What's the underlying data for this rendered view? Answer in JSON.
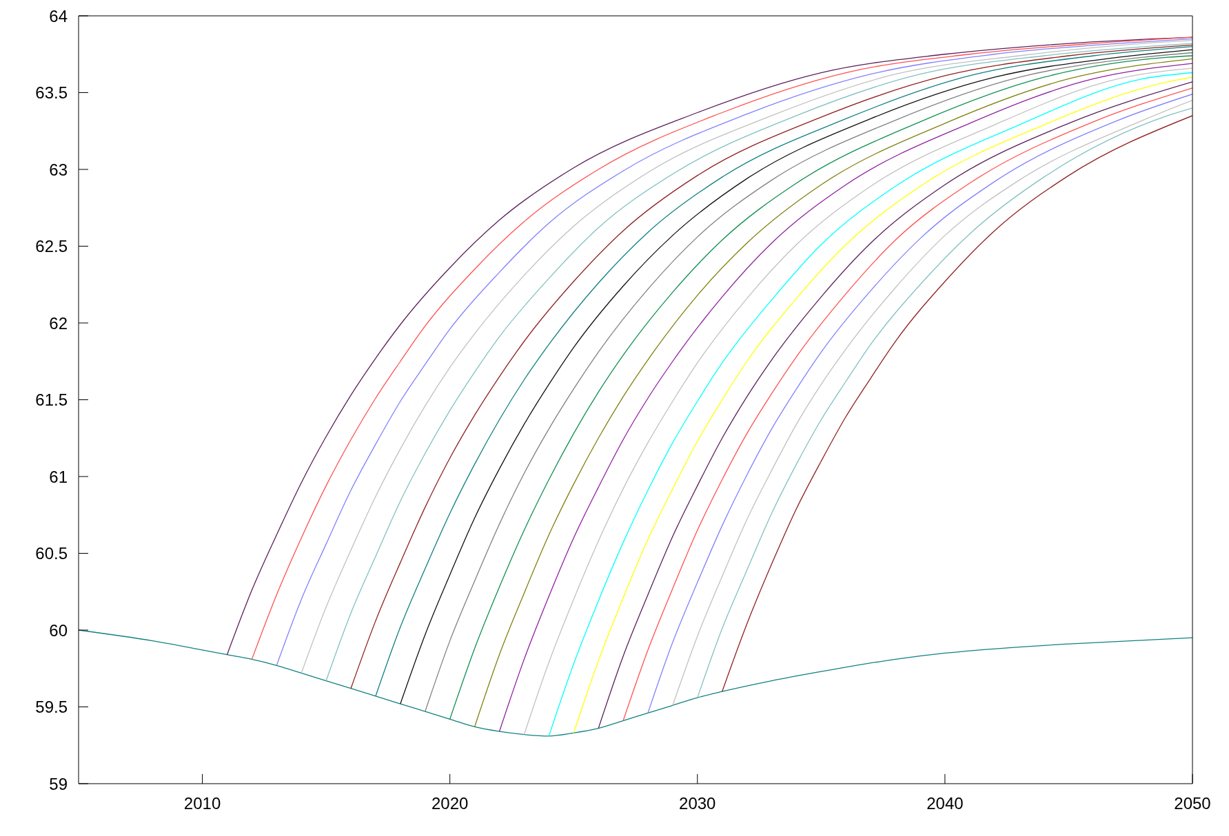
{
  "chart_data": {
    "type": "line",
    "xlim": [
      2005,
      2050
    ],
    "ylim": [
      59,
      64
    ],
    "xticks": [
      2010,
      2020,
      2030,
      2040,
      2050
    ],
    "yticks": [
      59,
      59.5,
      60,
      60.5,
      61,
      61.5,
      62,
      62.5,
      63,
      63.5,
      64
    ],
    "marker": "none",
    "line_style": "solid",
    "series": [
      {
        "color": "#108080",
        "x": [
          2005,
          2008,
          2011,
          2012,
          2013,
          2014,
          2015,
          2016,
          2017,
          2018,
          2019,
          2020,
          2021,
          2022,
          2023,
          2024,
          2025,
          2026,
          2027,
          2028,
          2029,
          2030,
          2031,
          2033,
          2035,
          2038,
          2040,
          2043,
          2045,
          2050
        ],
        "values": [
          60.0,
          59.93,
          59.84,
          59.81,
          59.77,
          59.72,
          59.67,
          59.62,
          59.57,
          59.52,
          59.47,
          59.42,
          59.37,
          59.34,
          59.32,
          59.31,
          59.33,
          59.36,
          59.41,
          59.46,
          59.51,
          59.56,
          59.6,
          59.67,
          59.73,
          59.81,
          59.85,
          59.89,
          59.91,
          59.95
        ]
      },
      {
        "color": "#5a1f5a",
        "x": [
          2011,
          2012,
          2013,
          2014,
          2015,
          2016,
          2017,
          2018,
          2020,
          2022,
          2025,
          2030,
          2035,
          2040,
          2045,
          2050
        ],
        "values": [
          59.84,
          60.26,
          60.62,
          60.96,
          61.26,
          61.53,
          61.77,
          61.99,
          62.36,
          62.67,
          63.01,
          63.37,
          63.63,
          63.75,
          63.82,
          63.86
        ]
      },
      {
        "color": "#ff5050",
        "x": [
          2012,
          2013,
          2014,
          2015,
          2016,
          2017,
          2018,
          2019,
          2021,
          2023,
          2026,
          2031,
          2036,
          2041,
          2046,
          2050
        ],
        "values": [
          59.81,
          60.23,
          60.6,
          60.94,
          61.24,
          61.51,
          61.75,
          61.98,
          62.35,
          62.66,
          63.0,
          63.37,
          63.63,
          63.75,
          63.82,
          63.86
        ]
      },
      {
        "color": "#8080ff",
        "x": [
          2013,
          2014,
          2015,
          2016,
          2017,
          2018,
          2019,
          2020,
          2022,
          2024,
          2027,
          2032,
          2037,
          2042,
          2047,
          2050
        ],
        "values": [
          59.77,
          60.2,
          60.56,
          60.91,
          61.21,
          61.49,
          61.73,
          61.96,
          62.33,
          62.65,
          62.99,
          63.36,
          63.62,
          63.75,
          63.82,
          63.85
        ]
      },
      {
        "color": "#c0c0c0",
        "x": [
          2014,
          2015,
          2016,
          2017,
          2018,
          2019,
          2020,
          2021,
          2023,
          2025,
          2028,
          2033,
          2038,
          2043,
          2048,
          2050
        ],
        "values": [
          59.72,
          60.15,
          60.52,
          60.87,
          61.18,
          61.46,
          61.71,
          61.93,
          62.31,
          62.63,
          62.98,
          63.35,
          63.62,
          63.74,
          63.82,
          63.84
        ]
      },
      {
        "color": "#80c0c0",
        "x": [
          2015,
          2016,
          2017,
          2018,
          2019,
          2020,
          2021,
          2022,
          2024,
          2026,
          2029,
          2034,
          2039,
          2044,
          2049,
          2050
        ],
        "values": [
          59.67,
          60.11,
          60.48,
          60.84,
          61.15,
          61.43,
          61.68,
          61.91,
          62.29,
          62.62,
          62.97,
          63.35,
          63.62,
          63.74,
          63.81,
          63.82
        ]
      },
      {
        "color": "#902020",
        "x": [
          2016,
          2017,
          2018,
          2019,
          2020,
          2021,
          2022,
          2023,
          2025,
          2027,
          2030,
          2035,
          2040,
          2045,
          2050
        ],
        "values": [
          59.62,
          60.06,
          60.44,
          60.8,
          61.12,
          61.4,
          61.65,
          61.88,
          62.27,
          62.6,
          62.96,
          63.34,
          63.61,
          63.74,
          63.81
        ]
      },
      {
        "color": "#108080",
        "x": [
          2017,
          2018,
          2019,
          2020,
          2021,
          2022,
          2023,
          2024,
          2026,
          2028,
          2031,
          2036,
          2041,
          2046,
          2050
        ],
        "values": [
          59.57,
          60.02,
          60.4,
          60.76,
          61.08,
          61.37,
          61.63,
          61.86,
          62.26,
          62.59,
          62.95,
          63.33,
          63.61,
          63.74,
          63.8
        ]
      },
      {
        "color": "#101010",
        "x": [
          2018,
          2019,
          2020,
          2021,
          2022,
          2023,
          2024,
          2025,
          2027,
          2029,
          2032,
          2037,
          2042,
          2047,
          2050
        ],
        "values": [
          59.52,
          59.97,
          60.36,
          60.73,
          61.05,
          61.34,
          61.6,
          61.84,
          62.24,
          62.57,
          62.94,
          63.33,
          63.6,
          63.73,
          63.78
        ]
      },
      {
        "color": "#808080",
        "x": [
          2019,
          2020,
          2021,
          2022,
          2023,
          2024,
          2025,
          2026,
          2028,
          2030,
          2033,
          2038,
          2043,
          2048,
          2050
        ],
        "values": [
          59.47,
          59.93,
          60.32,
          60.69,
          61.02,
          61.31,
          61.57,
          61.81,
          62.22,
          62.56,
          62.93,
          63.32,
          63.6,
          63.73,
          63.76
        ]
      },
      {
        "color": "#109050",
        "x": [
          2020,
          2021,
          2022,
          2023,
          2024,
          2025,
          2026,
          2027,
          2029,
          2031,
          2034,
          2039,
          2044,
          2049,
          2050
        ],
        "values": [
          59.42,
          59.88,
          60.28,
          60.65,
          60.98,
          61.28,
          61.55,
          61.79,
          62.2,
          62.54,
          62.91,
          63.31,
          63.6,
          63.73,
          63.74
        ]
      },
      {
        "color": "#808010",
        "x": [
          2021,
          2022,
          2023,
          2024,
          2025,
          2026,
          2027,
          2028,
          2030,
          2032,
          2035,
          2040,
          2045,
          2050
        ],
        "values": [
          59.37,
          59.84,
          60.24,
          60.62,
          60.95,
          61.25,
          61.52,
          61.76,
          62.18,
          62.52,
          62.9,
          63.3,
          63.59,
          63.72
        ]
      },
      {
        "color": "#9020a0",
        "x": [
          2022,
          2023,
          2024,
          2025,
          2026,
          2027,
          2028,
          2029,
          2031,
          2033,
          2036,
          2041,
          2046,
          2050
        ],
        "values": [
          59.34,
          59.81,
          60.22,
          60.6,
          60.93,
          61.24,
          61.51,
          61.75,
          62.17,
          62.52,
          62.9,
          63.3,
          63.59,
          63.69
        ]
      },
      {
        "color": "#c0c0c0",
        "x": [
          2023,
          2024,
          2025,
          2026,
          2027,
          2028,
          2029,
          2030,
          2032,
          2034,
          2037,
          2042,
          2047,
          2050
        ],
        "values": [
          59.32,
          59.79,
          60.2,
          60.58,
          60.92,
          61.22,
          61.49,
          61.74,
          62.16,
          62.51,
          62.89,
          63.29,
          63.59,
          63.66
        ]
      },
      {
        "color": "#00ffff",
        "x": [
          2024,
          2025,
          2026,
          2027,
          2028,
          2029,
          2030,
          2031,
          2033,
          2035,
          2038,
          2043,
          2048,
          2050
        ],
        "values": [
          59.31,
          59.78,
          60.19,
          60.57,
          60.91,
          61.22,
          61.49,
          61.74,
          62.15,
          62.51,
          62.89,
          63.29,
          63.59,
          63.63
        ]
      },
      {
        "color": "#ffff00",
        "x": [
          2025,
          2026,
          2027,
          2028,
          2029,
          2030,
          2031,
          2032,
          2034,
          2036,
          2039,
          2044,
          2049,
          2050
        ],
        "values": [
          59.33,
          59.8,
          60.21,
          60.59,
          60.92,
          61.23,
          61.5,
          61.75,
          62.16,
          62.51,
          62.89,
          63.29,
          63.57,
          63.6
        ]
      },
      {
        "color": "#5a1f5a",
        "x": [
          2026,
          2027,
          2028,
          2029,
          2030,
          2031,
          2032,
          2033,
          2035,
          2037,
          2040,
          2045,
          2050
        ],
        "values": [
          59.36,
          59.83,
          60.23,
          60.61,
          60.94,
          61.25,
          61.52,
          61.76,
          62.17,
          62.52,
          62.9,
          63.3,
          63.57
        ]
      },
      {
        "color": "#ff5050",
        "x": [
          2027,
          2028,
          2029,
          2030,
          2031,
          2032,
          2033,
          2034,
          2036,
          2038,
          2041,
          2046,
          2050
        ],
        "values": [
          59.41,
          59.87,
          60.27,
          60.65,
          60.98,
          61.28,
          61.54,
          61.78,
          62.19,
          62.54,
          62.91,
          63.31,
          63.53
        ]
      },
      {
        "color": "#8080ff",
        "x": [
          2028,
          2029,
          2030,
          2031,
          2032,
          2033,
          2034,
          2035,
          2037,
          2039,
          2042,
          2047,
          2050
        ],
        "values": [
          59.46,
          59.92,
          60.31,
          60.68,
          61.01,
          61.31,
          61.57,
          61.81,
          62.21,
          62.55,
          62.92,
          63.32,
          63.49
        ]
      },
      {
        "color": "#c0c0c0",
        "x": [
          2029,
          2030,
          2031,
          2032,
          2033,
          2034,
          2035,
          2036,
          2038,
          2040,
          2043,
          2048,
          2050
        ],
        "values": [
          59.51,
          59.96,
          60.35,
          60.72,
          61.04,
          61.34,
          61.6,
          61.83,
          62.23,
          62.57,
          62.93,
          63.32,
          63.45
        ]
      },
      {
        "color": "#80c0c0",
        "x": [
          2030,
          2031,
          2032,
          2033,
          2034,
          2035,
          2036,
          2037,
          2039,
          2041,
          2044,
          2049,
          2050
        ],
        "values": [
          59.56,
          60.01,
          60.39,
          60.76,
          61.08,
          61.37,
          61.62,
          61.86,
          62.25,
          62.58,
          62.95,
          63.35,
          63.4
        ]
      },
      {
        "color": "#902020",
        "x": [
          2031,
          2032,
          2033,
          2034,
          2035,
          2036,
          2037,
          2038,
          2040,
          2042,
          2045,
          2050
        ],
        "values": [
          59.6,
          60.04,
          60.43,
          60.79,
          61.1,
          61.39,
          61.64,
          61.88,
          62.27,
          62.6,
          62.96,
          63.35
        ]
      }
    ]
  }
}
